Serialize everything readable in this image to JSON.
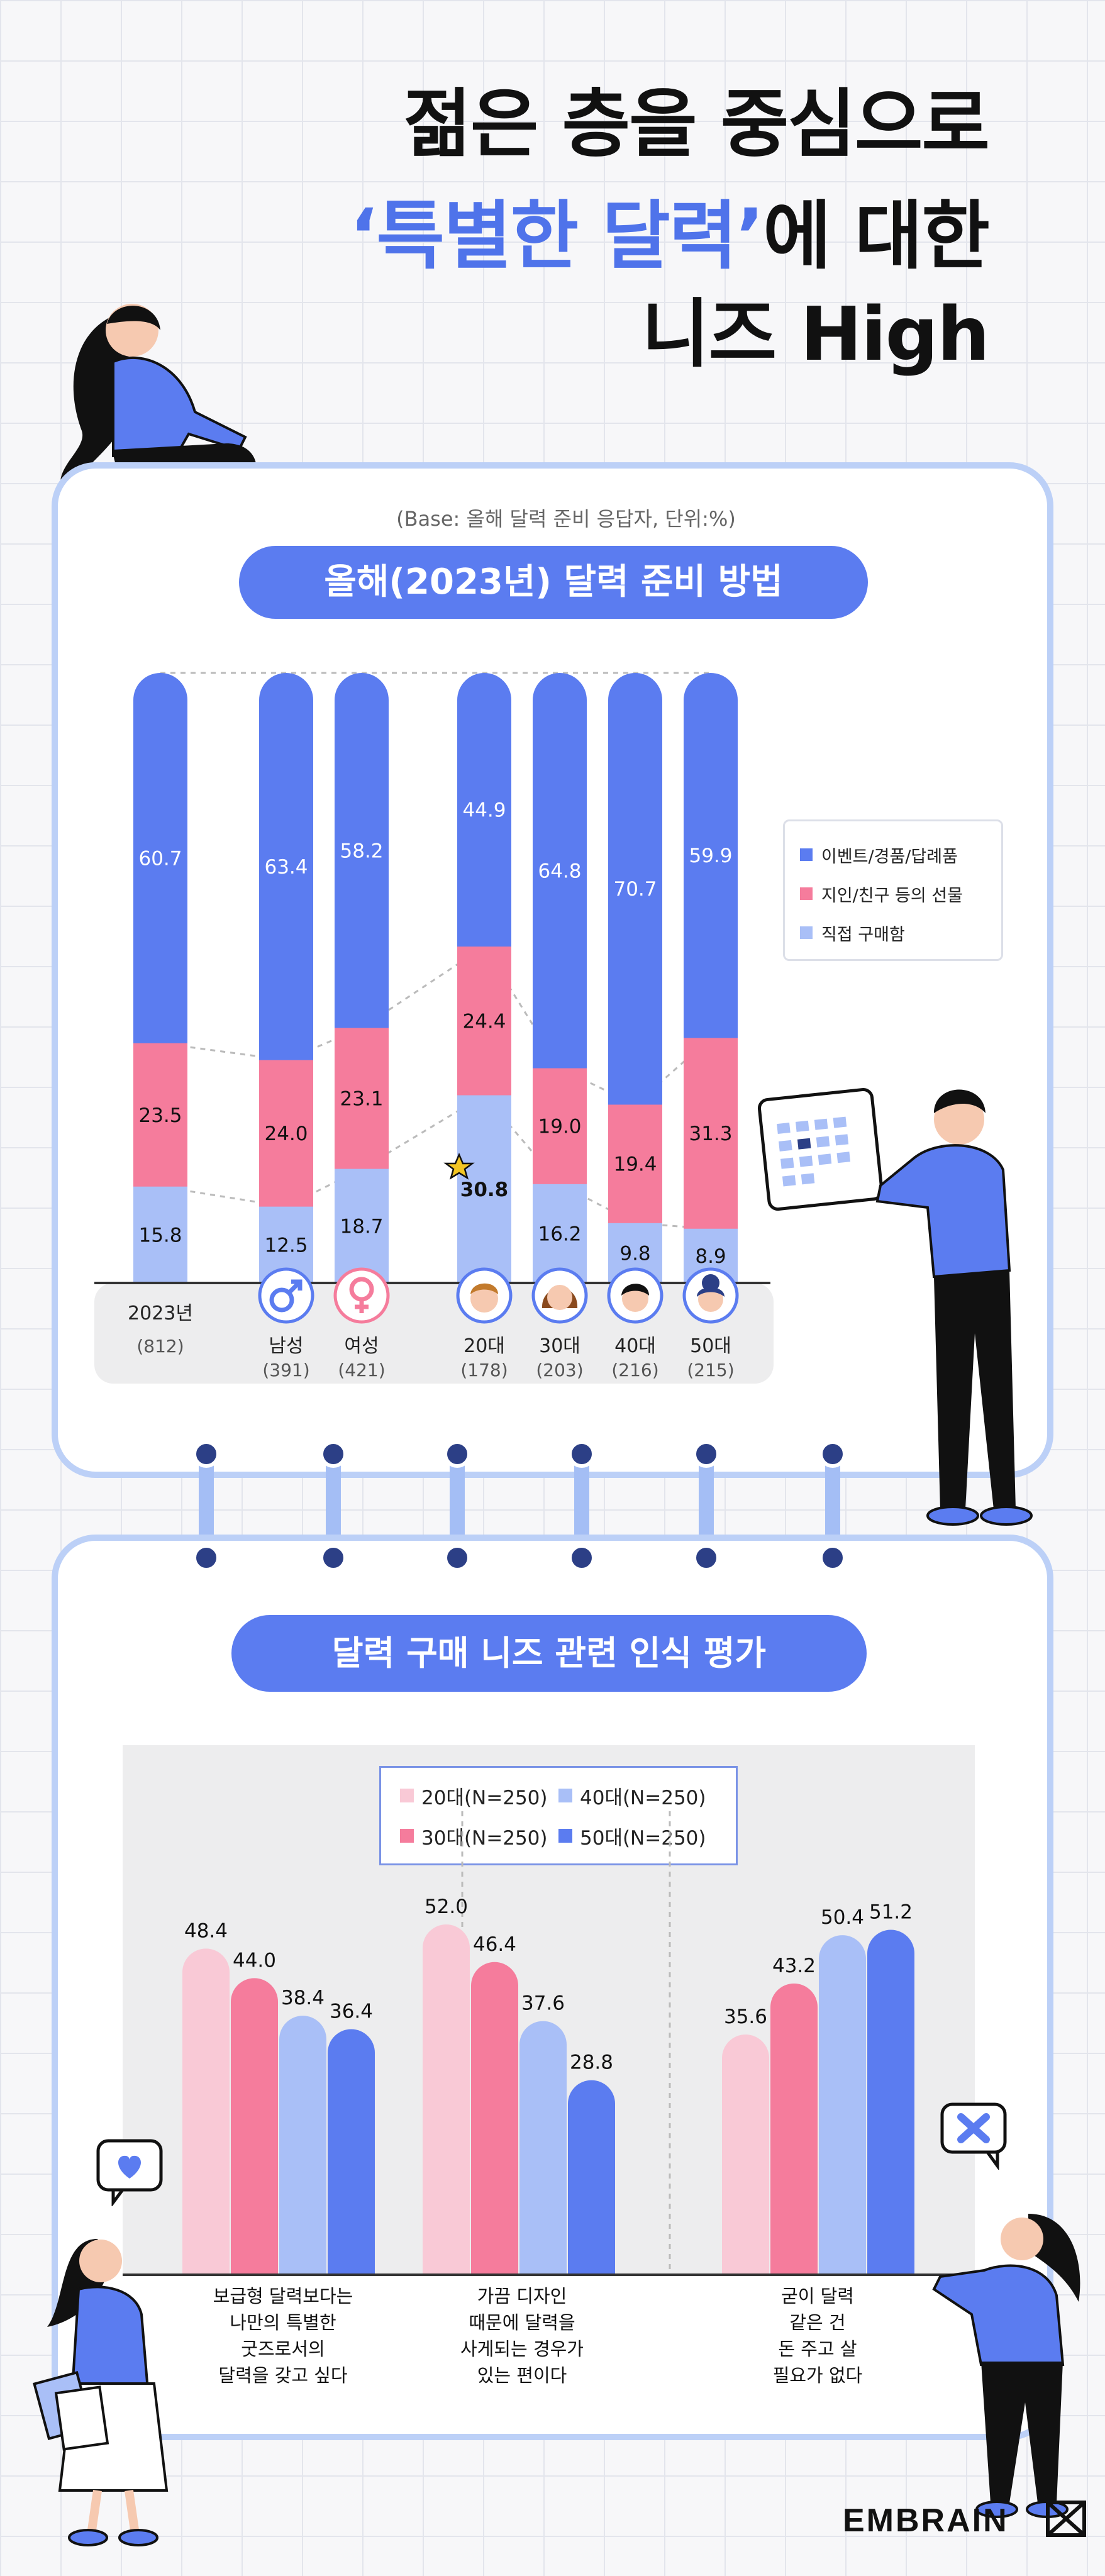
{
  "title": {
    "line1": "젊은 층을 중심으로",
    "line2_highlight": "‘특별한 달력’",
    "line2_rest": "에 대한",
    "line3": "니즈 High"
  },
  "section1": {
    "base_note": "(Base: 올해 달력 준비 응답자, 단위:%)",
    "pill": "올해(2023년) 달력 준비 방법"
  },
  "section2": {
    "pill": "달력 구매 니즈 관련 인식 평가"
  },
  "brand": "EMBRAIN",
  "colors": {
    "blue": "#5b7cf0",
    "pink": "#f57c9c",
    "light_blue": "#a9bff7",
    "c20": "#f9c9d6",
    "c30": "#f57c9c",
    "c40": "#a9bff7",
    "c50": "#5b7cf0"
  },
  "chart_data": [
    {
      "type": "bar",
      "stacked": true,
      "title": "올해(2023년) 달력 준비 방법",
      "categories": [
        "2023년",
        "남성",
        "여성",
        "20대",
        "30대",
        "40대",
        "50대"
      ],
      "category_n": [
        "(812)",
        "(391)",
        "(421)",
        "(178)",
        "(203)",
        "(216)",
        "(215)"
      ],
      "series": [
        {
          "name": "이벤트/경품/답례품",
          "values": [
            60.7,
            63.4,
            58.2,
            44.9,
            64.8,
            70.7,
            59.9
          ]
        },
        {
          "name": "지인/친구 등의 선물",
          "values": [
            23.5,
            24.0,
            23.1,
            24.4,
            19.0,
            19.4,
            31.3
          ]
        },
        {
          "name": "직접 구매함",
          "values": [
            15.8,
            12.5,
            18.7,
            30.8,
            16.2,
            9.8,
            8.9
          ]
        }
      ],
      "legend": "right"
    },
    {
      "type": "bar",
      "title": "달력 구매 니즈 관련 인식 평가",
      "categories": [
        "보급형 달력보다는\n나만의 특별한\n굿즈로서의\n달력을 갖고 싶다",
        "가끔 디자인\n때문에 달력을\n사게되는 경우가\n있는 편이다",
        "굳이 달력\n같은 건\n돈 주고 살\n필요가 없다"
      ],
      "series": [
        {
          "name": "20대(N=250)",
          "values": [
            48.4,
            52.0,
            35.6
          ]
        },
        {
          "name": "30대(N=250)",
          "values": [
            44.0,
            46.4,
            43.2
          ]
        },
        {
          "name": "40대(N=250)",
          "values": [
            38.4,
            37.6,
            50.4
          ]
        },
        {
          "name": "50대(N=250)",
          "values": [
            36.4,
            28.8,
            51.2
          ]
        }
      ],
      "legend": "top"
    }
  ]
}
